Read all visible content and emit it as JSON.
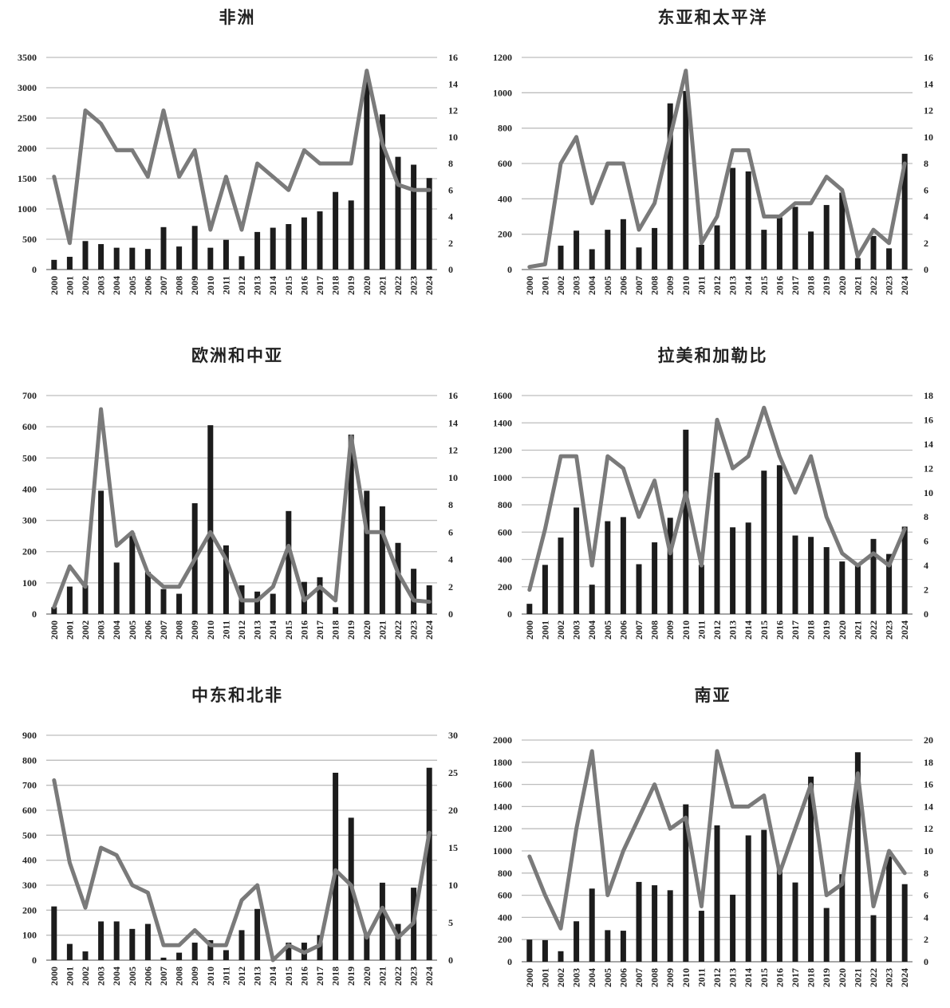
{
  "chart_data": [
    {
      "type": "bar",
      "title": "非洲",
      "categories": [
        "2000",
        "2001",
        "2002",
        "2003",
        "2004",
        "2005",
        "2006",
        "2007",
        "2008",
        "2009",
        "2010",
        "2011",
        "2012",
        "2013",
        "2014",
        "2015",
        "2016",
        "2017",
        "2018",
        "2019",
        "2020",
        "2021",
        "2022",
        "2023",
        "2024"
      ],
      "series": [
        {
          "type": "bar",
          "axis": "left",
          "values": [
            160,
            210,
            470,
            420,
            360,
            360,
            340,
            700,
            380,
            720,
            360,
            490,
            220,
            620,
            690,
            750,
            860,
            960,
            1280,
            1140,
            3100,
            2560,
            1860,
            1730,
            1510
          ]
        },
        {
          "type": "line",
          "axis": "right",
          "values": [
            7,
            2,
            12,
            11,
            9,
            9,
            7,
            12,
            7,
            9,
            3,
            7,
            3,
            8,
            7,
            6,
            9,
            8,
            8,
            8,
            15,
            9.5,
            6.4,
            6,
            6
          ]
        }
      ],
      "ylim_left": [
        0,
        3500
      ],
      "yticks_left": [
        0,
        500,
        1000,
        1500,
        2000,
        2500,
        3000,
        3500
      ],
      "ylim_right": [
        0,
        16
      ],
      "yticks_right": [
        0,
        2,
        4,
        6,
        8,
        10,
        12,
        14,
        16
      ]
    },
    {
      "type": "bar",
      "title": "东亚和太平洋",
      "categories": [
        "2000",
        "2001",
        "2002",
        "2003",
        "2004",
        "2005",
        "2006",
        "2007",
        "2008",
        "2009",
        "2010",
        "2011",
        "2012",
        "2013",
        "2014",
        "2015",
        "2016",
        "2017",
        "2018",
        "2019",
        "2020",
        "2021",
        "2022",
        "2023",
        "2024"
      ],
      "series": [
        {
          "type": "bar",
          "axis": "left",
          "values": [
            0,
            0,
            135,
            220,
            115,
            225,
            285,
            125,
            235,
            940,
            1010,
            140,
            250,
            575,
            555,
            225,
            295,
            355,
            215,
            365,
            435,
            65,
            190,
            120,
            655
          ]
        },
        {
          "type": "line",
          "axis": "right",
          "values": [
            0.2,
            0.4,
            8,
            10,
            5,
            8,
            8,
            3,
            5,
            10,
            15,
            2,
            4,
            9,
            9,
            4,
            4,
            5,
            5,
            7,
            6,
            1,
            3,
            2,
            8
          ]
        }
      ],
      "ylim_left": [
        0,
        1200
      ],
      "yticks_left": [
        0,
        200,
        400,
        600,
        800,
        1000,
        1200
      ],
      "ylim_right": [
        0,
        16
      ],
      "yticks_right": [
        0,
        2,
        4,
        6,
        8,
        10,
        12,
        14,
        16
      ]
    },
    {
      "type": "bar",
      "title": "欧洲和中亚",
      "categories": [
        "2000",
        "2001",
        "2002",
        "2003",
        "2004",
        "2005",
        "2006",
        "2007",
        "2008",
        "2009",
        "2010",
        "2011",
        "2012",
        "2013",
        "2014",
        "2015",
        "2016",
        "2017",
        "2018",
        "2019",
        "2020",
        "2021",
        "2022",
        "2023",
        "2024"
      ],
      "series": [
        {
          "type": "bar",
          "axis": "left",
          "values": [
            22,
            88,
            92,
            395,
            165,
            260,
            135,
            80,
            65,
            355,
            605,
            220,
            92,
            72,
            65,
            330,
            103,
            118,
            22,
            575,
            395,
            345,
            228,
            145,
            92
          ]
        },
        {
          "type": "line",
          "axis": "right",
          "values": [
            0.5,
            3.5,
            2,
            15,
            5,
            6,
            3,
            2,
            2,
            4,
            6,
            4,
            1,
            1,
            2,
            5,
            1,
            2,
            1,
            13,
            6,
            6,
            3,
            1,
            0.9
          ]
        }
      ],
      "ylim_left": [
        0,
        700
      ],
      "yticks_left": [
        0,
        100,
        200,
        300,
        400,
        500,
        600,
        700
      ],
      "ylim_right": [
        0,
        16
      ],
      "yticks_right": [
        0,
        2,
        4,
        6,
        8,
        10,
        12,
        14,
        16
      ]
    },
    {
      "type": "bar",
      "title": "拉美和加勒比",
      "categories": [
        "2000",
        "2001",
        "2002",
        "2003",
        "2004",
        "2005",
        "2006",
        "2007",
        "2008",
        "2009",
        "2010",
        "2011",
        "2012",
        "2013",
        "2014",
        "2015",
        "2016",
        "2017",
        "2018",
        "2019",
        "2020",
        "2021",
        "2022",
        "2023",
        "2024"
      ],
      "series": [
        {
          "type": "bar",
          "axis": "left",
          "values": [
            75,
            360,
            560,
            780,
            215,
            680,
            710,
            365,
            525,
            705,
            1350,
            360,
            1035,
            635,
            670,
            1050,
            1090,
            575,
            565,
            490,
            385,
            360,
            550,
            440,
            640
          ]
        },
        {
          "type": "line",
          "axis": "right",
          "values": [
            2,
            7,
            13,
            13,
            4,
            13,
            12,
            8,
            11,
            5,
            10,
            4,
            16,
            12,
            13,
            17,
            13,
            10,
            13,
            8,
            5,
            4,
            5,
            4,
            7
          ]
        }
      ],
      "ylim_left": [
        0,
        1600
      ],
      "yticks_left": [
        0,
        200,
        400,
        600,
        800,
        1000,
        1200,
        1400,
        1600
      ],
      "ylim_right": [
        0,
        18
      ],
      "yticks_right": [
        0,
        2,
        4,
        6,
        8,
        10,
        12,
        14,
        16,
        18
      ]
    },
    {
      "type": "bar",
      "title": "中东和北非",
      "categories": [
        "2000",
        "2001",
        "2002",
        "2003",
        "2004",
        "2005",
        "2006",
        "2007",
        "2008",
        "2009",
        "2010",
        "2011",
        "2012",
        "2013",
        "2014",
        "2015",
        "2016",
        "2017",
        "2018",
        "2019",
        "2020",
        "2021",
        "2022",
        "2023",
        "2024"
      ],
      "series": [
        {
          "type": "bar",
          "axis": "left",
          "values": [
            215,
            65,
            35,
            155,
            155,
            125,
            145,
            10,
            30,
            70,
            80,
            40,
            120,
            205,
            0,
            70,
            70,
            100,
            750,
            570,
            105,
            310,
            145,
            290,
            770
          ]
        },
        {
          "type": "line",
          "axis": "right",
          "values": [
            24,
            13,
            7,
            15,
            14,
            10,
            9,
            2,
            2,
            4,
            2,
            2,
            8,
            10,
            0,
            2,
            1,
            2,
            12,
            10,
            3,
            7,
            3,
            5,
            17
          ]
        }
      ],
      "ylim_left": [
        0,
        900
      ],
      "yticks_left": [
        0,
        100,
        200,
        300,
        400,
        500,
        600,
        700,
        800,
        900
      ],
      "ylim_right": [
        0,
        30
      ],
      "yticks_right": [
        0,
        5,
        10,
        15,
        20,
        25,
        30
      ]
    },
    {
      "type": "bar",
      "title": "南亚",
      "categories": [
        "2000",
        "2001",
        "2002",
        "2003",
        "2004",
        "2005",
        "2006",
        "2007",
        "2008",
        "2009",
        "2010",
        "2011",
        "2012",
        "2013",
        "2014",
        "2015",
        "2016",
        "2017",
        "2018",
        "2019",
        "2020",
        "2021",
        "2022",
        "2023",
        "2024"
      ],
      "series": [
        {
          "type": "bar",
          "axis": "left",
          "values": [
            200,
            195,
            95,
            365,
            660,
            285,
            280,
            720,
            690,
            645,
            1420,
            460,
            1230,
            605,
            1140,
            1190,
            840,
            715,
            1670,
            485,
            790,
            1890,
            420,
            950,
            700
          ]
        },
        {
          "type": "line",
          "axis": "right",
          "values": [
            9.5,
            6,
            3,
            12,
            19,
            6,
            10,
            13,
            16,
            12,
            13,
            5,
            19,
            14,
            14,
            15,
            8,
            12,
            16,
            6,
            7,
            17,
            5,
            10,
            8
          ]
        }
      ],
      "ylim_left": [
        0,
        2000
      ],
      "yticks_left": [
        0,
        200,
        400,
        600,
        800,
        1000,
        1200,
        1400,
        1600,
        1800,
        2000
      ],
      "ylim_right": [
        0,
        20
      ],
      "yticks_right": [
        0,
        2,
        4,
        6,
        8,
        10,
        12,
        14,
        16,
        18,
        20
      ]
    }
  ]
}
